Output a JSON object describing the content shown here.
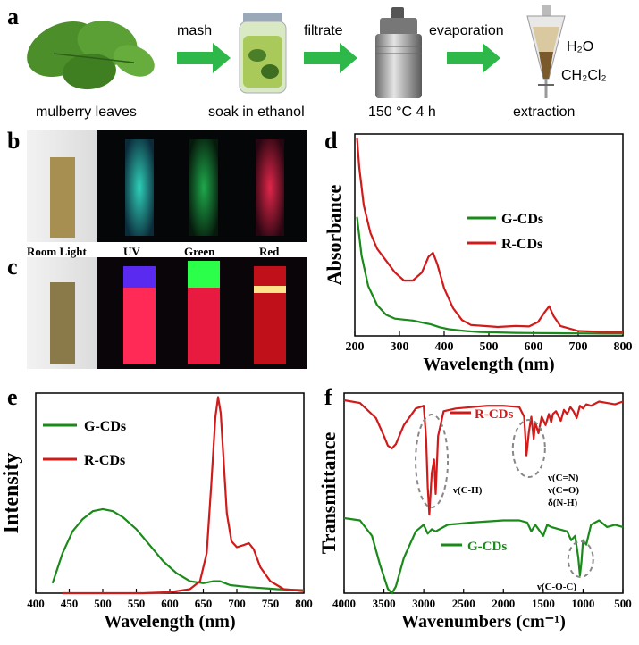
{
  "panels": {
    "a": "a",
    "b": "b",
    "c": "c",
    "d": "d",
    "e": "e",
    "f": "f"
  },
  "scheme": {
    "steps": [
      {
        "label": "mulberry leaves"
      },
      {
        "label": "soak in ethanol"
      },
      {
        "label": "150 °C 4 h"
      },
      {
        "label": "extraction"
      }
    ],
    "arrows": [
      "mash",
      "filtrate",
      "evaporation"
    ],
    "funnel_top": "H₂O",
    "funnel_bottom": "CH₂Cl₂"
  },
  "photos": {
    "row_b_labels": [
      "Room Light",
      "UV",
      "Green",
      "Red"
    ]
  },
  "colors": {
    "g": "#1a8a1a",
    "r": "#d11a1a",
    "dark": "#000000"
  },
  "chart_data": [
    {
      "id": "d",
      "type": "line",
      "xlabel": "Wavelength (nm)",
      "ylabel": "Absorbance",
      "xlim": [
        200,
        800
      ],
      "xticks": [
        200,
        300,
        400,
        500,
        600,
        700,
        800
      ],
      "series": [
        {
          "name": "G-CDs",
          "color": "#1a8a1a",
          "x": [
            205,
            215,
            230,
            250,
            270,
            290,
            310,
            330,
            350,
            370,
            390,
            410,
            430,
            450,
            480,
            520,
            560,
            600,
            650,
            700,
            760,
            800
          ],
          "y": [
            0.62,
            0.42,
            0.26,
            0.16,
            0.11,
            0.09,
            0.085,
            0.08,
            0.07,
            0.06,
            0.045,
            0.035,
            0.03,
            0.025,
            0.02,
            0.018,
            0.016,
            0.015,
            0.014,
            0.013,
            0.012,
            0.012
          ]
        },
        {
          "name": "R-CDs",
          "color": "#d11a1a",
          "x": [
            205,
            210,
            220,
            235,
            250,
            270,
            290,
            310,
            330,
            350,
            365,
            375,
            385,
            400,
            420,
            440,
            460,
            490,
            520,
            560,
            590,
            610,
            625,
            635,
            645,
            660,
            700,
            760,
            800
          ],
          "y": [
            1.0,
            0.85,
            0.66,
            0.52,
            0.44,
            0.38,
            0.32,
            0.28,
            0.28,
            0.32,
            0.4,
            0.42,
            0.36,
            0.24,
            0.14,
            0.08,
            0.055,
            0.05,
            0.045,
            0.05,
            0.048,
            0.07,
            0.12,
            0.15,
            0.1,
            0.05,
            0.025,
            0.02,
            0.02
          ]
        }
      ]
    },
    {
      "id": "e",
      "type": "line",
      "xlabel": "Wavelength (nm)",
      "ylabel": "Intensity",
      "xlim": [
        400,
        800
      ],
      "xticks": [
        400,
        450,
        500,
        550,
        600,
        650,
        700,
        750,
        800
      ],
      "series": [
        {
          "name": "G-CDs",
          "color": "#1a8a1a",
          "x": [
            425,
            440,
            455,
            470,
            485,
            500,
            515,
            530,
            550,
            570,
            590,
            610,
            630,
            650,
            665,
            675,
            690,
            720,
            760,
            800
          ],
          "y": [
            0.05,
            0.2,
            0.31,
            0.37,
            0.41,
            0.42,
            0.41,
            0.38,
            0.32,
            0.24,
            0.16,
            0.1,
            0.06,
            0.05,
            0.06,
            0.06,
            0.04,
            0.03,
            0.02,
            0.015
          ]
        },
        {
          "name": "R-CDs",
          "color": "#d11a1a",
          "x": [
            440,
            500,
            560,
            600,
            630,
            645,
            655,
            662,
            668,
            672,
            676,
            680,
            685,
            692,
            700,
            710,
            718,
            725,
            735,
            750,
            770,
            800
          ],
          "y": [
            0.0,
            0.0,
            0.0,
            0.005,
            0.02,
            0.06,
            0.2,
            0.55,
            0.88,
            0.98,
            0.9,
            0.68,
            0.4,
            0.26,
            0.23,
            0.24,
            0.25,
            0.22,
            0.13,
            0.06,
            0.02,
            0.01
          ]
        }
      ]
    },
    {
      "id": "f",
      "type": "line",
      "xlabel": "Wavenumbers (cm⁻¹)",
      "ylabel": "Transmittance",
      "xlim": [
        4000,
        500
      ],
      "xreverse": true,
      "xticks": [
        4000,
        3500,
        3000,
        2500,
        2000,
        1500,
        1000,
        500
      ],
      "annotations": [
        "ν(C-H)",
        "ν(C=N)",
        "ν(C=O)",
        "δ(N-H)",
        "ν(C-O-C)"
      ],
      "series": [
        {
          "name": "R-CDs",
          "color": "#d11a1a",
          "x": [
            4000,
            3800,
            3600,
            3500,
            3450,
            3400,
            3350,
            3250,
            3100,
            3000,
            2970,
            2950,
            2930,
            2900,
            2870,
            2850,
            2820,
            2750,
            2600,
            2400,
            2200,
            2000,
            1800,
            1740,
            1710,
            1680,
            1650,
            1620,
            1600,
            1560,
            1520,
            1470,
            1430,
            1400,
            1380,
            1340,
            1280,
            1240,
            1200,
            1160,
            1120,
            1080,
            1040,
            1000,
            960,
            900,
            800,
            700,
            600,
            500
          ],
          "y": [
            0.98,
            0.96,
            0.85,
            0.72,
            0.65,
            0.63,
            0.66,
            0.8,
            0.92,
            0.94,
            0.7,
            0.35,
            0.15,
            0.45,
            0.55,
            0.3,
            0.72,
            0.9,
            0.92,
            0.93,
            0.94,
            0.94,
            0.93,
            0.86,
            0.58,
            0.75,
            0.86,
            0.7,
            0.82,
            0.74,
            0.86,
            0.8,
            0.88,
            0.82,
            0.88,
            0.9,
            0.83,
            0.91,
            0.88,
            0.93,
            0.9,
            0.85,
            0.94,
            0.92,
            0.95,
            0.94,
            0.97,
            0.96,
            0.95,
            0.97
          ]
        },
        {
          "name": "G-CDs",
          "color": "#1a8a1a",
          "x": [
            4000,
            3800,
            3650,
            3550,
            3450,
            3400,
            3350,
            3250,
            3100,
            3000,
            2950,
            2900,
            2850,
            2700,
            2400,
            2000,
            1800,
            1700,
            1650,
            1600,
            1500,
            1450,
            1400,
            1300,
            1200,
            1150,
            1100,
            1060,
            1040,
            1020,
            1000,
            960,
            900,
            800,
            700,
            600,
            500
          ],
          "y": [
            0.96,
            0.95,
            0.88,
            0.75,
            0.64,
            0.62,
            0.65,
            0.78,
            0.9,
            0.93,
            0.89,
            0.91,
            0.9,
            0.93,
            0.94,
            0.95,
            0.95,
            0.94,
            0.9,
            0.93,
            0.88,
            0.93,
            0.92,
            0.91,
            0.9,
            0.86,
            0.88,
            0.78,
            0.7,
            0.76,
            0.86,
            0.84,
            0.93,
            0.95,
            0.92,
            0.93,
            0.92
          ]
        }
      ]
    }
  ]
}
